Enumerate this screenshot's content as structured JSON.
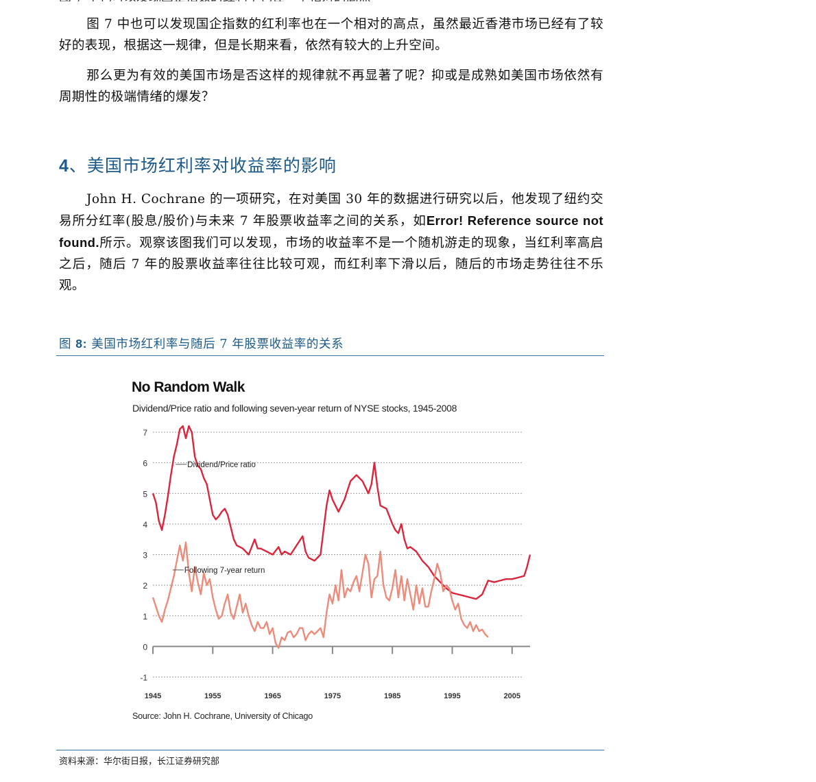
{
  "paragraphs": {
    "p1": "图 7 中也可以发现国企指数的红利率也在一个相对的高点，虽然最近香港市场已经有了较好的表现，根据这一规律，但是长期来看，依然有较大的上升空间。",
    "p2": "那么更为有效的美国市场是否这样的规律就不再显著了呢？抑或是成熟如美国市场依然有周期性的极端情绪的爆发？",
    "p3_part1": "John H. Cochrane 的一项研究，在对美国 30 年的数据进行研究以后，他发现了纽约交易所分红率(股息/股价)与未来 7 年股票收益率之间的关系，如",
    "p3_error": "Error! Reference source not found.",
    "p3_part2": "所示。观察该图我们可以发现，市场的收益率不是一个随机游走的现象，当红利率高启之后，随后 7 年的股票收益率往往比较可观，而红利率下滑以后，随后的市场走势往往不乐观。"
  },
  "section_heading": {
    "number": "4",
    "text": "、美国市场红利率对收益率的影响"
  },
  "figure_caption": {
    "prefix": "图",
    "number": "8:",
    "text": "美国市场红利率与随后 7 年股票收益率的关系"
  },
  "chart_data": {
    "type": "line",
    "title": "No Random Walk",
    "subtitle": "Dividend/Price ratio and following seven-year return of NYSE stocks, 1945-2008",
    "source": "Source: John H. Cochrane, University of Chicago",
    "xlim": [
      1945,
      2008
    ],
    "ylim": [
      -1,
      7
    ],
    "x_ticks": [
      1945,
      1955,
      1965,
      1975,
      1985,
      1995,
      2005
    ],
    "y_ticks": [
      7,
      6,
      5,
      4,
      3,
      2,
      1,
      0,
      -1
    ],
    "grid": true,
    "series": [
      {
        "name": "Dividend/Price ratio",
        "color": "#d9263c",
        "x": [
          1945.0,
          1945.5,
          1946.0,
          1946.5,
          1947.0,
          1947.5,
          1948.0,
          1948.5,
          1949.0,
          1949.5,
          1950.0,
          1950.5,
          1951.0,
          1951.5,
          1952.0,
          1952.5,
          1953.0,
          1953.5,
          1954.0,
          1954.5,
          1955.0,
          1955.5,
          1956.0,
          1956.5,
          1957.0,
          1957.5,
          1958.0,
          1958.5,
          1959.0,
          1960.0,
          1961.0,
          1962.0,
          1962.5,
          1963.0,
          1964.0,
          1965.0,
          1966.0,
          1966.5,
          1967.0,
          1968.0,
          1969.0,
          1970.0,
          1970.5,
          1971.0,
          1972.0,
          1973.0,
          1974.0,
          1974.5,
          1975.0,
          1976.0,
          1977.0,
          1978.0,
          1979.0,
          1980.0,
          1981.0,
          1981.5,
          1982.0,
          1982.5,
          1983.0,
          1984.0,
          1985.0,
          1985.5,
          1986.0,
          1986.5,
          1987.0,
          1987.5,
          1988.0,
          1989.0,
          1990.0,
          1991.0,
          1992.0,
          1993.0,
          1994.0,
          1995.0,
          1996.0,
          1997.0,
          1998.0,
          1999.0,
          2000.0,
          2001.0,
          2002.0,
          2003.0,
          2004.0,
          2005.0,
          2006.0,
          2007.0,
          2007.5,
          2008.0
        ],
        "values": [
          5.0,
          4.7,
          4.1,
          3.8,
          4.3,
          4.9,
          5.6,
          6.2,
          6.6,
          7.1,
          7.2,
          6.8,
          7.2,
          7.0,
          6.2,
          5.9,
          5.8,
          5.5,
          5.3,
          4.8,
          4.3,
          4.15,
          4.25,
          4.4,
          4.5,
          4.3,
          3.9,
          3.5,
          3.3,
          3.2,
          3.0,
          3.5,
          3.2,
          3.2,
          3.1,
          3.0,
          3.25,
          3.0,
          3.1,
          3.0,
          3.3,
          3.6,
          3.1,
          2.9,
          2.8,
          3.0,
          4.6,
          5.1,
          4.8,
          4.4,
          4.8,
          5.4,
          5.6,
          5.4,
          5.0,
          5.3,
          6.0,
          5.2,
          4.6,
          4.5,
          4.0,
          3.8,
          3.7,
          4.0,
          3.5,
          3.2,
          3.25,
          3.1,
          2.8,
          2.6,
          2.3,
          2.1,
          1.9,
          1.75,
          1.7,
          1.65,
          1.6,
          1.55,
          1.7,
          2.15,
          2.1,
          2.15,
          2.2,
          2.2,
          2.25,
          2.3,
          2.6,
          3.0
        ]
      },
      {
        "name": "Following 7-year return",
        "color": "#ec8b7a",
        "x": [
          1945.0,
          1945.5,
          1946.0,
          1946.5,
          1947.0,
          1947.5,
          1948.0,
          1948.5,
          1949.0,
          1949.5,
          1950.0,
          1950.5,
          1951.0,
          1951.5,
          1952.0,
          1952.5,
          1953.0,
          1953.5,
          1954.0,
          1954.5,
          1955.0,
          1955.5,
          1956.0,
          1956.5,
          1957.0,
          1957.5,
          1958.0,
          1958.5,
          1959.0,
          1959.5,
          1960.0,
          1960.5,
          1961.0,
          1961.5,
          1962.0,
          1962.5,
          1963.0,
          1963.5,
          1964.0,
          1964.5,
          1965.0,
          1965.5,
          1966.0,
          1966.5,
          1967.0,
          1967.5,
          1968.0,
          1968.5,
          1969.0,
          1969.5,
          1970.0,
          1970.5,
          1971.0,
          1971.5,
          1972.0,
          1972.5,
          1973.0,
          1973.5,
          1974.0,
          1974.5,
          1975.0,
          1975.5,
          1976.0,
          1976.5,
          1977.0,
          1977.5,
          1978.0,
          1978.5,
          1979.0,
          1979.5,
          1980.0,
          1980.5,
          1981.0,
          1981.5,
          1982.0,
          1982.5,
          1983.0,
          1983.5,
          1984.0,
          1984.5,
          1985.0,
          1985.5,
          1986.0,
          1986.5,
          1987.0,
          1987.5,
          1988.0,
          1988.5,
          1989.0,
          1989.5,
          1990.0,
          1990.5,
          1991.0,
          1991.5,
          1992.0,
          1992.5,
          1993.0,
          1993.5,
          1994.0,
          1994.5,
          1995.0,
          1995.5,
          1996.0,
          1996.5,
          1997.0,
          1997.5,
          1998.0,
          1998.5,
          1999.0,
          1999.5,
          2000.0,
          2000.5,
          2001.0
        ],
        "values": [
          1.6,
          1.3,
          1.0,
          0.8,
          1.2,
          1.5,
          1.9,
          2.3,
          2.8,
          3.3,
          2.8,
          3.4,
          2.4,
          1.8,
          2.6,
          2.1,
          1.7,
          2.4,
          2.0,
          2.2,
          1.6,
          1.2,
          0.9,
          1.0,
          1.4,
          1.7,
          1.1,
          0.9,
          1.3,
          1.7,
          1.1,
          1.4,
          1.0,
          0.7,
          0.5,
          0.8,
          0.6,
          0.6,
          0.8,
          0.4,
          0.6,
          0.1,
          -0.05,
          0.3,
          0.2,
          0.45,
          0.5,
          0.3,
          0.4,
          0.6,
          0.6,
          0.2,
          0.4,
          0.5,
          0.4,
          0.5,
          0.6,
          0.3,
          1.1,
          1.7,
          1.4,
          2.0,
          1.5,
          2.5,
          1.6,
          1.9,
          1.8,
          2.1,
          2.3,
          1.8,
          2.4,
          3.0,
          2.7,
          1.6,
          2.2,
          2.3,
          3.1,
          2.0,
          1.6,
          1.5,
          1.9,
          2.5,
          1.6,
          2.3,
          1.5,
          2.2,
          1.7,
          1.2,
          2.0,
          1.4,
          1.9,
          1.3,
          1.3,
          1.8,
          2.2,
          2.7,
          2.4,
          1.8,
          2.0,
          1.9,
          1.5,
          1.2,
          1.4,
          0.9,
          0.7,
          0.6,
          0.8,
          0.5,
          0.7,
          0.5,
          0.55,
          0.4,
          0.3
        ]
      }
    ],
    "annotations": [
      {
        "text": "Dividend/Price ratio",
        "series": 0
      },
      {
        "text": "Following 7-year return",
        "series": 1
      }
    ]
  },
  "source_note": "资料来源：华尔街日报，长江证券研究部"
}
